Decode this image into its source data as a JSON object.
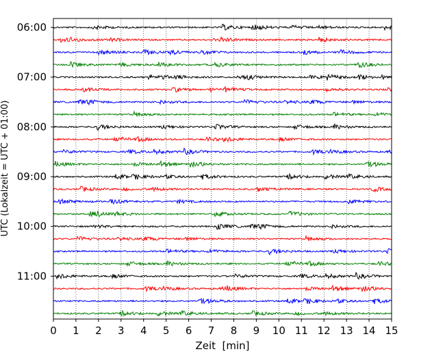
{
  "chart_data": {
    "type": "line",
    "title": "",
    "xlabel": "Zeit  [min]",
    "ylabel": "UTC (Lokalzeit = UTC + 01:00)",
    "xlim": [
      0,
      15
    ],
    "x_ticks": [
      0,
      1,
      2,
      3,
      4,
      5,
      6,
      7,
      8,
      9,
      10,
      11,
      12,
      13,
      14,
      15
    ],
    "x_tick_labels": [
      "0",
      "1",
      "2",
      "3",
      "4",
      "5",
      "6",
      "7",
      "8",
      "9",
      "10",
      "11",
      "12",
      "13",
      "14",
      "15"
    ],
    "y_tick_labels": [
      "06:00",
      "07:00",
      "08:00",
      "09:00",
      "10:00",
      "11:00"
    ],
    "grid": "vertical dotted at each minute",
    "trace_start_times": [
      "06:00",
      "06:15",
      "06:30",
      "06:45",
      "07:00",
      "07:15",
      "07:30",
      "07:45",
      "08:00",
      "08:15",
      "08:30",
      "08:45",
      "09:00",
      "09:15",
      "09:30",
      "09:45",
      "10:00",
      "10:15",
      "10:30",
      "10:45",
      "11:00",
      "11:15",
      "11:30",
      "11:45"
    ],
    "trace_duration_min": 15,
    "trace_colors": [
      "#000000",
      "#ff0000",
      "#0000ff",
      "#008000"
    ]
  }
}
